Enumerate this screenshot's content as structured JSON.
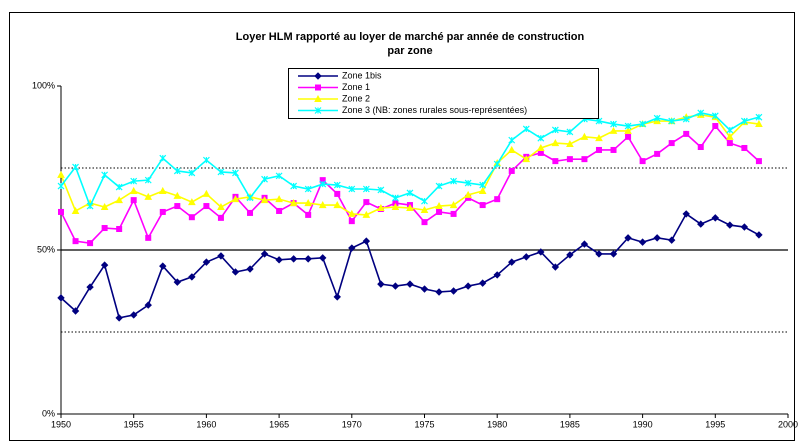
{
  "chart_data": {
    "type": "line",
    "title": [
      "Loyer HLM rapporté au loyer de marché par année de construction",
      "par zone"
    ],
    "x": [
      1950,
      1951,
      1952,
      1953,
      1954,
      1955,
      1956,
      1957,
      1958,
      1959,
      1960,
      1961,
      1962,
      1963,
      1964,
      1965,
      1966,
      1967,
      1968,
      1969,
      1970,
      1971,
      1972,
      1973,
      1974,
      1975,
      1976,
      1977,
      1978,
      1979,
      1980,
      1981,
      1982,
      1983,
      1984,
      1985,
      1986,
      1987,
      1988,
      1989,
      1990,
      1991,
      1992,
      1993,
      1994,
      1995,
      1996,
      1997,
      1998
    ],
    "series": [
      {
        "name": "Zone 1bis",
        "color": "#000080",
        "marker": "diamond",
        "values": [
          35.4,
          31.4,
          38.7,
          45.4,
          29.3,
          30.2,
          33.2,
          45.1,
          40.2,
          41.8,
          46.3,
          48.2,
          43.3,
          44.2,
          48.8,
          47,
          47.3,
          47.3,
          47.6,
          35.7,
          50.6,
          52.7,
          39.6,
          39,
          39.6,
          38.1,
          37.2,
          37.5,
          39,
          39.9,
          42.4,
          46.3,
          47.9,
          49.4,
          44.8,
          48.5,
          51.8,
          48.8,
          48.8,
          53.7,
          52.4,
          53.7,
          53,
          61,
          57.9,
          59.8,
          57.6,
          57,
          54.6
        ]
      },
      {
        "name": "Zone 1",
        "color": "#ff00ff",
        "marker": "square",
        "values": [
          61.6,
          52.7,
          52.1,
          56.7,
          56.4,
          65.2,
          53.7,
          61.6,
          63.4,
          60,
          63.4,
          59.8,
          66.2,
          61.3,
          65.9,
          61.9,
          64.3,
          60.7,
          71.3,
          67.1,
          58.8,
          64.6,
          62.5,
          64.3,
          63.7,
          58.5,
          61.6,
          61,
          65.9,
          63.7,
          65.5,
          74.1,
          78.4,
          79.6,
          77.1,
          77.7,
          77.7,
          80.5,
          80.5,
          84.5,
          77.1,
          79.3,
          82.6,
          85.4,
          81.4,
          87.8,
          82.6,
          81.1,
          77.1
        ]
      },
      {
        "name": "Zone 2",
        "color": "#ffff00",
        "marker": "triangle",
        "values": [
          72.9,
          61.9,
          64.3,
          63.1,
          65.2,
          68,
          66.2,
          68,
          66.5,
          64.6,
          67.1,
          63.1,
          65.5,
          66.2,
          65.2,
          65.5,
          64.3,
          64.3,
          63.7,
          63.7,
          61,
          60.7,
          62.8,
          63.1,
          62.8,
          62.2,
          63.4,
          63.7,
          66.8,
          68,
          76.5,
          80.5,
          77.7,
          81.1,
          82.6,
          82.3,
          84.5,
          84.1,
          86.3,
          86.3,
          88.4,
          89.3,
          89.3,
          90.5,
          91.2,
          90.5,
          84.5,
          89,
          88.4
        ]
      },
      {
        "name": "Zone 3 (NB: zones rurales sous-représentées)",
        "color": "#00ffff",
        "marker": "x",
        "values": [
          69.5,
          75.3,
          63.4,
          72.9,
          69.2,
          71,
          71.3,
          78,
          74.1,
          73.5,
          77.4,
          73.8,
          73.5,
          65.9,
          71.6,
          72.6,
          69.5,
          68.6,
          70.1,
          69.8,
          68.6,
          68.6,
          68.3,
          65.9,
          67.4,
          64.9,
          69.5,
          71,
          70.4,
          69.8,
          76.2,
          83.5,
          86.9,
          84.1,
          86.6,
          86,
          89.9,
          89.3,
          88.4,
          87.8,
          88.4,
          90.2,
          89.3,
          89.9,
          91.8,
          90.9,
          86.6,
          89.3,
          90.5
        ]
      }
    ],
    "xlim": [
      1950,
      2000
    ],
    "xticks": [
      1950,
      1955,
      1960,
      1965,
      1970,
      1975,
      1980,
      1985,
      1990,
      1995,
      2000
    ],
    "ylim": [
      0,
      100
    ],
    "yticks": [
      {
        "value": 0,
        "label": "0%"
      },
      {
        "value": 50,
        "label": "50%"
      },
      {
        "value": 100,
        "label": "100%"
      }
    ],
    "grid_lines": [
      {
        "value": 25,
        "style": "dotted"
      },
      {
        "value": 50,
        "style": "solid"
      },
      {
        "value": 75,
        "style": "dotted"
      }
    ]
  }
}
